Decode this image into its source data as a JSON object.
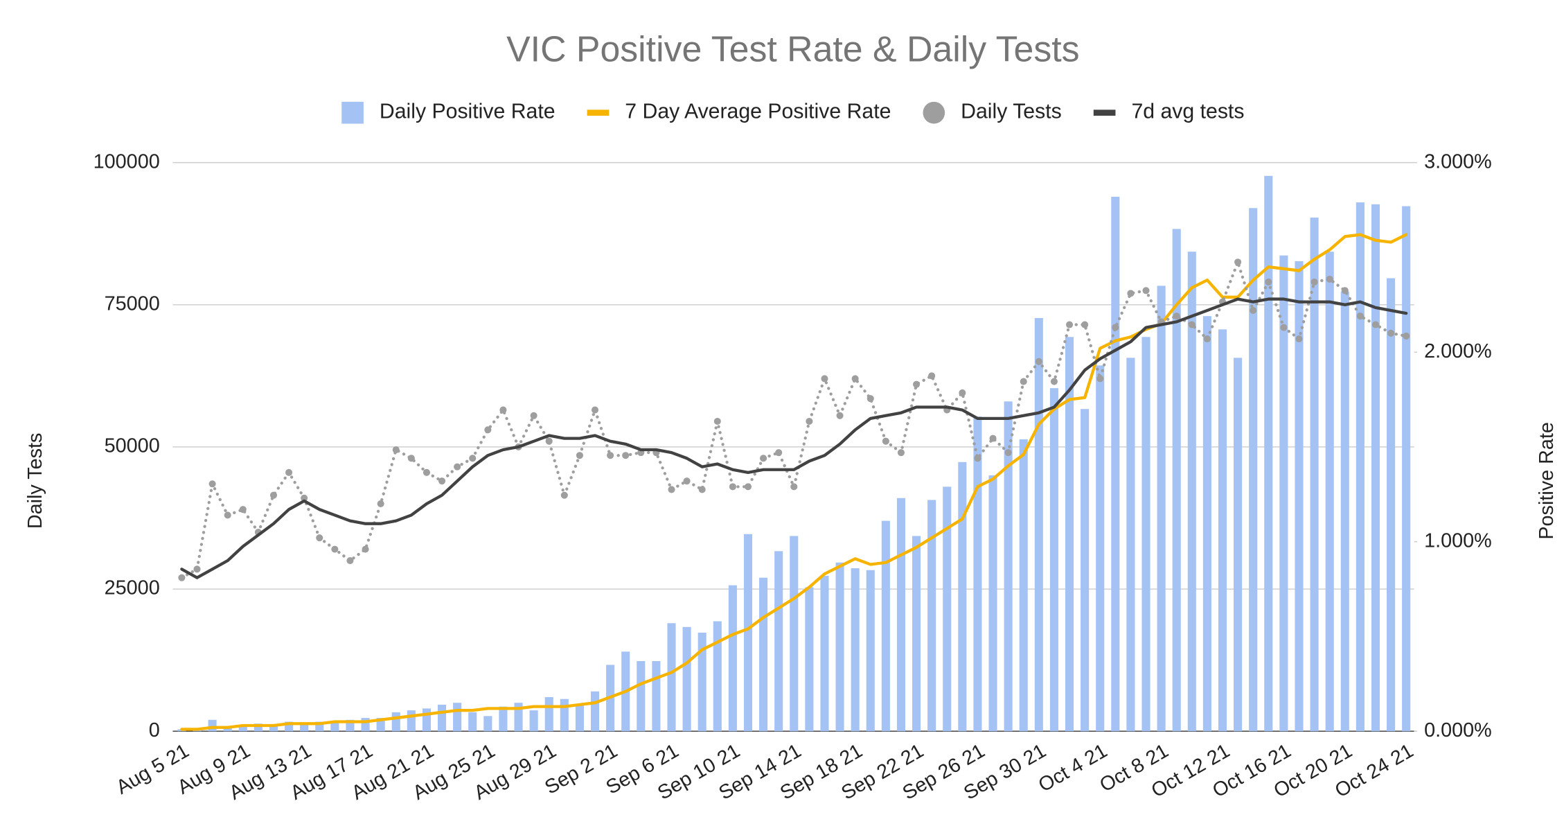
{
  "chart_data": {
    "type": "combo",
    "title": "VIC Positive Test Rate & Daily Tests",
    "y_label": "Daily Tests",
    "y2_label": "Positive Rate",
    "categories": [
      "Aug 5 21",
      null,
      null,
      null,
      "Aug 9 21",
      null,
      null,
      null,
      "Aug 13 21",
      null,
      null,
      null,
      "Aug 17 21",
      null,
      null,
      null,
      "Aug 21 21",
      null,
      null,
      null,
      "Aug 25 21",
      null,
      null,
      null,
      "Aug 29 21",
      null,
      null,
      null,
      "Sep 2 21",
      null,
      null,
      null,
      "Sep 6 21",
      null,
      null,
      null,
      "Sep 10 21",
      null,
      null,
      null,
      "Sep 14 21",
      null,
      null,
      null,
      "Sep 18 21",
      null,
      null,
      null,
      "Sep 22 21",
      null,
      null,
      null,
      "Sep 26 21",
      null,
      null,
      null,
      "Sep 30 21",
      null,
      null,
      null,
      "Oct 4 21",
      null,
      null,
      null,
      "Oct 8 21",
      null,
      null,
      null,
      "Oct 12 21",
      null,
      null,
      null,
      "Oct 16 21",
      null,
      null,
      null,
      "Oct 20 21",
      null,
      null,
      null,
      "Oct 24 21"
    ],
    "ylim": [
      0,
      100000
    ],
    "yticks": [
      0,
      25000,
      50000,
      75000,
      100000
    ],
    "y2lim": [
      0,
      3
    ],
    "y2ticks": [
      {
        "value": 0,
        "label": "0.000%"
      },
      {
        "value": 1,
        "label": "1.000%"
      },
      {
        "value": 2,
        "label": "2.000%"
      },
      {
        "value": 3,
        "label": "3.000%"
      }
    ],
    "grid": true,
    "legend": "top",
    "series": [
      {
        "name": "Daily Positive Rate",
        "type": "bar",
        "axis": "y2",
        "color": "#a4c2f4",
        "values": [
          0.01,
          0.01,
          0.06,
          0.02,
          0.03,
          0.04,
          0.03,
          0.05,
          0.04,
          0.05,
          0.05,
          0.06,
          0.07,
          0.07,
          0.1,
          0.11,
          0.12,
          0.14,
          0.15,
          0.1,
          0.08,
          0.13,
          0.15,
          0.11,
          0.18,
          0.17,
          0.14,
          0.21,
          0.35,
          0.42,
          0.37,
          0.37,
          0.57,
          0.55,
          0.52,
          0.58,
          0.77,
          1.04,
          0.81,
          0.95,
          1.03,
          0.76,
          0.82,
          0.89,
          0.86,
          0.85,
          1.11,
          1.23,
          1.03,
          1.22,
          1.29,
          1.42,
          1.66,
          1.35,
          1.74,
          1.54,
          2.18,
          1.81,
          2.08,
          1.7,
          1.93,
          2.82,
          1.97,
          2.08,
          2.35,
          2.65,
          2.53,
          2.19,
          2.12,
          1.97,
          2.76,
          2.93,
          2.51,
          2.48,
          2.71,
          2.53,
          2.32,
          2.79,
          2.78,
          2.39,
          2.77
        ]
      },
      {
        "name": "7 Day Average Positive Rate",
        "type": "line",
        "axis": "y2",
        "color": "#f6b400",
        "values": [
          0.01,
          0.01,
          0.02,
          0.02,
          0.03,
          0.03,
          0.03,
          0.04,
          0.04,
          0.04,
          0.05,
          0.05,
          0.05,
          0.06,
          0.07,
          0.08,
          0.09,
          0.1,
          0.11,
          0.11,
          0.12,
          0.12,
          0.12,
          0.13,
          0.13,
          0.13,
          0.14,
          0.15,
          0.18,
          0.21,
          0.25,
          0.28,
          0.31,
          0.36,
          0.43,
          0.47,
          0.51,
          0.54,
          0.6,
          0.65,
          0.7,
          0.76,
          0.83,
          0.87,
          0.91,
          0.88,
          0.89,
          0.93,
          0.97,
          1.02,
          1.07,
          1.12,
          1.29,
          1.33,
          1.4,
          1.46,
          1.62,
          1.7,
          1.75,
          1.76,
          2.02,
          2.06,
          2.08,
          2.12,
          2.15,
          2.25,
          2.34,
          2.38,
          2.29,
          2.29,
          2.38,
          2.45,
          2.44,
          2.43,
          2.49,
          2.54,
          2.61,
          2.62,
          2.59,
          2.58,
          2.62
        ]
      },
      {
        "name": "Daily Tests",
        "type": "line",
        "axis": "y",
        "color": "#9e9e9e",
        "line_style": "dotted",
        "markers": true,
        "values": [
          27000,
          28500,
          43500,
          38000,
          39000,
          35000,
          41500,
          45500,
          41000,
          34000,
          32000,
          30000,
          32000,
          40000,
          49500,
          48000,
          45500,
          44000,
          46500,
          48000,
          53000,
          56500,
          50000,
          55500,
          51000,
          41500,
          48500,
          56500,
          48500,
          48500,
          49000,
          49000,
          42500,
          44000,
          42500,
          54500,
          43000,
          43000,
          48000,
          49000,
          43000,
          54500,
          62000,
          55500,
          62000,
          58500,
          51000,
          49000,
          61000,
          62500,
          56500,
          59500,
          48000,
          51500,
          49000,
          61500,
          65000,
          61500,
          71500,
          71500,
          62000,
          71000,
          77000,
          77500,
          72000,
          73000,
          71500,
          69000,
          75500,
          82500,
          74000,
          79000,
          71000,
          69000,
          79000,
          79500,
          77500,
          73000,
          71500,
          70000,
          69500
        ]
      },
      {
        "name": "7d avg tests",
        "type": "line",
        "axis": "y",
        "color": "#424242",
        "values": [
          28500,
          27000,
          28500,
          30000,
          32500,
          34500,
          36500,
          39000,
          40500,
          39000,
          38000,
          37000,
          36500,
          36500,
          37000,
          38000,
          40000,
          41500,
          44000,
          46500,
          48500,
          49500,
          50000,
          51000,
          52000,
          51500,
          51500,
          52000,
          51000,
          50500,
          49500,
          49500,
          49000,
          48000,
          46500,
          47000,
          46000,
          45500,
          46000,
          46000,
          46000,
          47500,
          48500,
          50500,
          53000,
          55000,
          55500,
          56000,
          57000,
          57000,
          57000,
          56500,
          55000,
          55000,
          55000,
          55500,
          56000,
          57000,
          60000,
          63500,
          65500,
          67000,
          68500,
          71000,
          71500,
          72000,
          73000,
          74000,
          75000,
          76000,
          75500,
          76000,
          76000,
          75500,
          75500,
          75500,
          75000,
          75500,
          74500,
          74000,
          73500
        ]
      }
    ]
  }
}
